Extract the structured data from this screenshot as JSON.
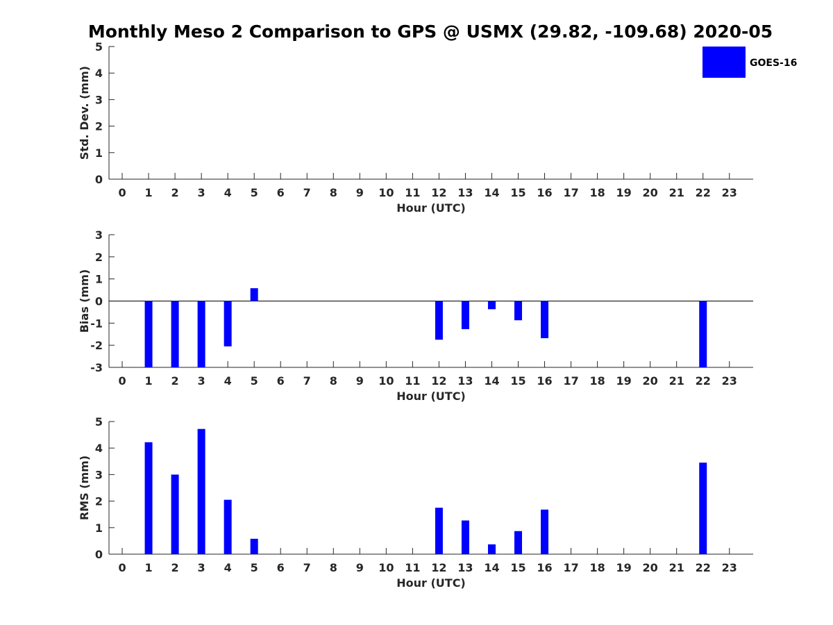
{
  "title": "Monthly Meso 2 Comparison to GPS @ USMX (29.82, -109.68) 2020-05",
  "legend": {
    "label": "GOES-16",
    "color": "#0000FF",
    "placement": "top-right"
  },
  "chart_data": [
    {
      "type": "bar",
      "ylabel": "Std. Dev. (mm)",
      "xlabel": "Hour (UTC)",
      "ylim": [
        0,
        5
      ],
      "yticks": [
        0,
        1,
        2,
        3,
        4,
        5
      ],
      "x": [
        0,
        1,
        2,
        3,
        4,
        5,
        6,
        7,
        8,
        9,
        10,
        11,
        12,
        13,
        14,
        15,
        16,
        17,
        18,
        19,
        20,
        21,
        22,
        23
      ],
      "series": [
        {
          "name": "GOES-16",
          "color": "#0000FF",
          "values": [
            null,
            null,
            null,
            null,
            null,
            null,
            null,
            null,
            null,
            null,
            null,
            null,
            null,
            null,
            null,
            null,
            null,
            null,
            null,
            null,
            null,
            null,
            null,
            null
          ]
        }
      ],
      "grid": false
    },
    {
      "type": "bar",
      "ylabel": "Bias (mm)",
      "xlabel": "Hour (UTC)",
      "ylim": [
        -3,
        3
      ],
      "yticks": [
        -3,
        -2,
        -1,
        0,
        1,
        2,
        3
      ],
      "zero_line": true,
      "x": [
        0,
        1,
        2,
        3,
        4,
        5,
        6,
        7,
        8,
        9,
        10,
        11,
        12,
        13,
        14,
        15,
        16,
        17,
        18,
        19,
        20,
        21,
        22,
        23
      ],
      "series": [
        {
          "name": "GOES-16",
          "color": "#0000FF",
          "values": [
            null,
            -3.0,
            -3.0,
            -3.0,
            -2.05,
            0.58,
            null,
            null,
            null,
            null,
            null,
            null,
            -1.75,
            -1.27,
            -0.37,
            -0.87,
            -1.68,
            null,
            null,
            null,
            null,
            null,
            -3.0,
            null
          ]
        }
      ],
      "grid": false
    },
    {
      "type": "bar",
      "ylabel": "RMS (mm)",
      "xlabel": "Hour (UTC)",
      "ylim": [
        0,
        5
      ],
      "yticks": [
        0,
        1,
        2,
        3,
        4,
        5
      ],
      "x": [
        0,
        1,
        2,
        3,
        4,
        5,
        6,
        7,
        8,
        9,
        10,
        11,
        12,
        13,
        14,
        15,
        16,
        17,
        18,
        19,
        20,
        21,
        22,
        23
      ],
      "series": [
        {
          "name": "GOES-16",
          "color": "#0000FF",
          "values": [
            null,
            4.22,
            3.0,
            4.72,
            2.05,
            0.58,
            null,
            null,
            null,
            null,
            null,
            null,
            1.75,
            1.27,
            0.37,
            0.87,
            1.68,
            null,
            null,
            null,
            null,
            null,
            3.45,
            null
          ]
        }
      ],
      "grid": false
    }
  ]
}
